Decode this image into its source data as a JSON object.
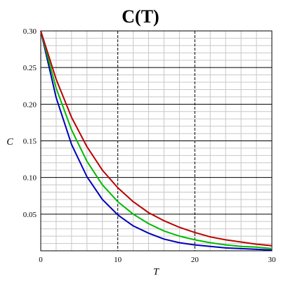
{
  "chart_data": {
    "type": "line",
    "title": "C(T)",
    "xlabel": "T",
    "ylabel": "C",
    "xlim": [
      0,
      30
    ],
    "ylim": [
      0,
      0.3
    ],
    "x_ticks": [
      "0",
      "10",
      "20",
      "30"
    ],
    "y_ticks": [
      "0.05",
      "0.10",
      "0.15",
      "0.20",
      "0.25",
      "0.30"
    ],
    "grid": true,
    "series": [
      {
        "color": "#0000bb",
        "x": [
          0,
          2,
          4,
          6,
          8,
          10,
          12,
          14,
          16,
          18,
          20,
          22,
          24,
          26,
          28,
          30
        ],
        "y": [
          0.3,
          0.209,
          0.145,
          0.101,
          0.07,
          0.049,
          0.034,
          0.024,
          0.016,
          0.011,
          0.008,
          0.006,
          0.004,
          0.003,
          0.002,
          0.001
        ]
      },
      {
        "color": "#00bb00",
        "x": [
          0,
          2,
          4,
          6,
          8,
          10,
          12,
          14,
          16,
          18,
          20,
          22,
          24,
          26,
          28,
          30
        ],
        "y": [
          0.3,
          0.222,
          0.165,
          0.122,
          0.09,
          0.067,
          0.05,
          0.037,
          0.027,
          0.02,
          0.015,
          0.011,
          0.008,
          0.006,
          0.005,
          0.003
        ]
      },
      {
        "color": "#bb0000",
        "x": [
          0,
          2,
          4,
          6,
          8,
          10,
          12,
          14,
          16,
          18,
          20,
          22,
          24,
          26,
          28,
          30
        ],
        "y": [
          0.3,
          0.234,
          0.182,
          0.142,
          0.11,
          0.086,
          0.067,
          0.052,
          0.041,
          0.032,
          0.025,
          0.019,
          0.015,
          0.012,
          0.009,
          0.007
        ]
      }
    ]
  }
}
